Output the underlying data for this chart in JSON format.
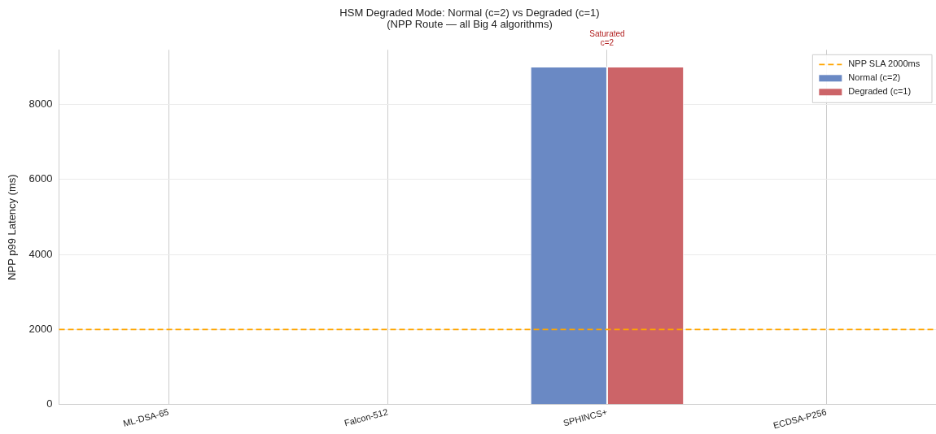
{
  "chart_data": {
    "type": "bar",
    "title": "HSM Degraded Mode: Normal (c=2) vs Degraded (c=1)\n(NPP Route — all Big 4 algorithms)",
    "ylabel": "NPP p99 Latency (ms)",
    "categories": [
      "ML-DSA-65",
      "Falcon-512",
      "SPHINCS+",
      "ECDSA-P256"
    ],
    "series": [
      {
        "name": "Normal (c=2)",
        "color": "#6a89c4",
        "values": [
          0,
          0,
          9000,
          0
        ]
      },
      {
        "name": "Degraded (c=1)",
        "color": "#cc6468",
        "values": [
          0,
          0,
          9000,
          0
        ]
      }
    ],
    "ylim": [
      0,
      9450
    ],
    "yticks": [
      0,
      2000,
      4000,
      6000,
      8000
    ],
    "ref_lines": [
      {
        "axis": "y",
        "value": 2000,
        "label": "NPP SLA 2000ms",
        "color": "#ffa500",
        "line_style": "dashed"
      }
    ],
    "annotations": [
      {
        "text": "Saturated\nc=2",
        "x": "SPHINCS+",
        "y": 9000
      }
    ],
    "grid": true,
    "legend": "top right"
  }
}
